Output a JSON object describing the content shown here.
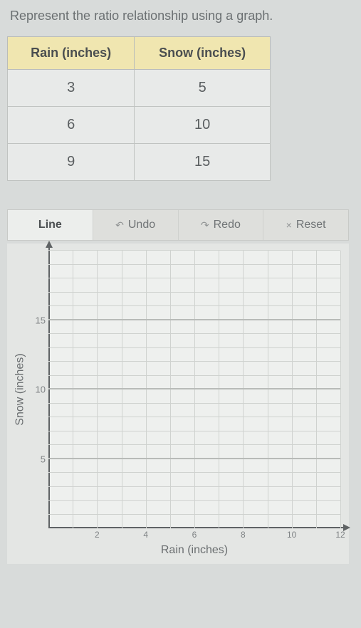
{
  "prompt_text": "Represent the ratio relationship using a graph.",
  "table": {
    "headers": [
      "Rain (inches)",
      "Snow (inches)"
    ],
    "rows": [
      [
        "3",
        "5"
      ],
      [
        "6",
        "10"
      ],
      [
        "9",
        "15"
      ]
    ],
    "header_bg": "#f0e6b0",
    "cell_bg": "#e8eae9",
    "border_color": "#c0c3c1"
  },
  "toolbar": {
    "line_label": "Line",
    "undo_label": "Undo",
    "redo_label": "Redo",
    "reset_label": "Reset",
    "undo_icon": "↶",
    "redo_icon": "↷",
    "reset_icon": "×",
    "active_bg": "#eceeec",
    "inactive_bg": "#dedfdc"
  },
  "chart": {
    "type": "line",
    "xlabel": "Rain (inches)",
    "ylabel": "Snow (inches)",
    "xlim": [
      0,
      12
    ],
    "ylim": [
      0,
      20
    ],
    "xticks": [
      2,
      4,
      6,
      8,
      10,
      12
    ],
    "yticks": [
      5,
      10,
      15
    ],
    "minor_step": 1,
    "background_color": "#eef0ee",
    "grid_color": "#cfd2cf",
    "axis_color": "#5f6365",
    "label_fontsize": 16,
    "tick_fontsize": 13
  }
}
